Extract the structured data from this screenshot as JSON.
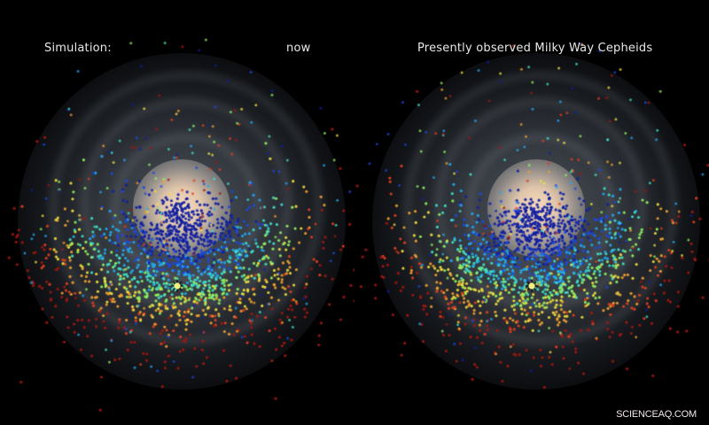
{
  "figure": {
    "left_panel": {
      "label_left": "Simulation:",
      "label_right": "now"
    },
    "right_panel": {
      "title": "Presently observed Milky Way Cepheids"
    },
    "credit": "SCIENCEAQ.COM"
  },
  "colors": {
    "background": "#000000",
    "bulge": "#f5d9bd",
    "sun_marker": "#f0f080",
    "colormap": [
      "#1020a0",
      "#1a4ae0",
      "#22a8f0",
      "#40e0c8",
      "#90f060",
      "#f0e040",
      "#f0a030",
      "#e04020",
      "#a01810"
    ]
  },
  "chart_data": [
    {
      "type": "scatter",
      "title": "Simulation: now",
      "description": "Top-down Milky Way disk with simulated Cepheid positions colored by a jet-like colormap (blue near the inner region, cyan/green around the Sun, yellow/orange/red farther out).",
      "sun_position": [
        200,
        323
      ],
      "galactic_center": [
        205,
        235
      ],
      "legend": [],
      "grid": false,
      "axes_visible": false
    },
    {
      "type": "scatter",
      "title": "Presently observed Milky Way Cepheids",
      "description": "Top-down Milky Way disk with observed Cepheid positions colored by the same jet-like colormap.",
      "sun_position": [
        600,
        323
      ],
      "galactic_center": [
        605,
        235
      ],
      "legend": [],
      "grid": false,
      "axes_visible": false
    }
  ]
}
